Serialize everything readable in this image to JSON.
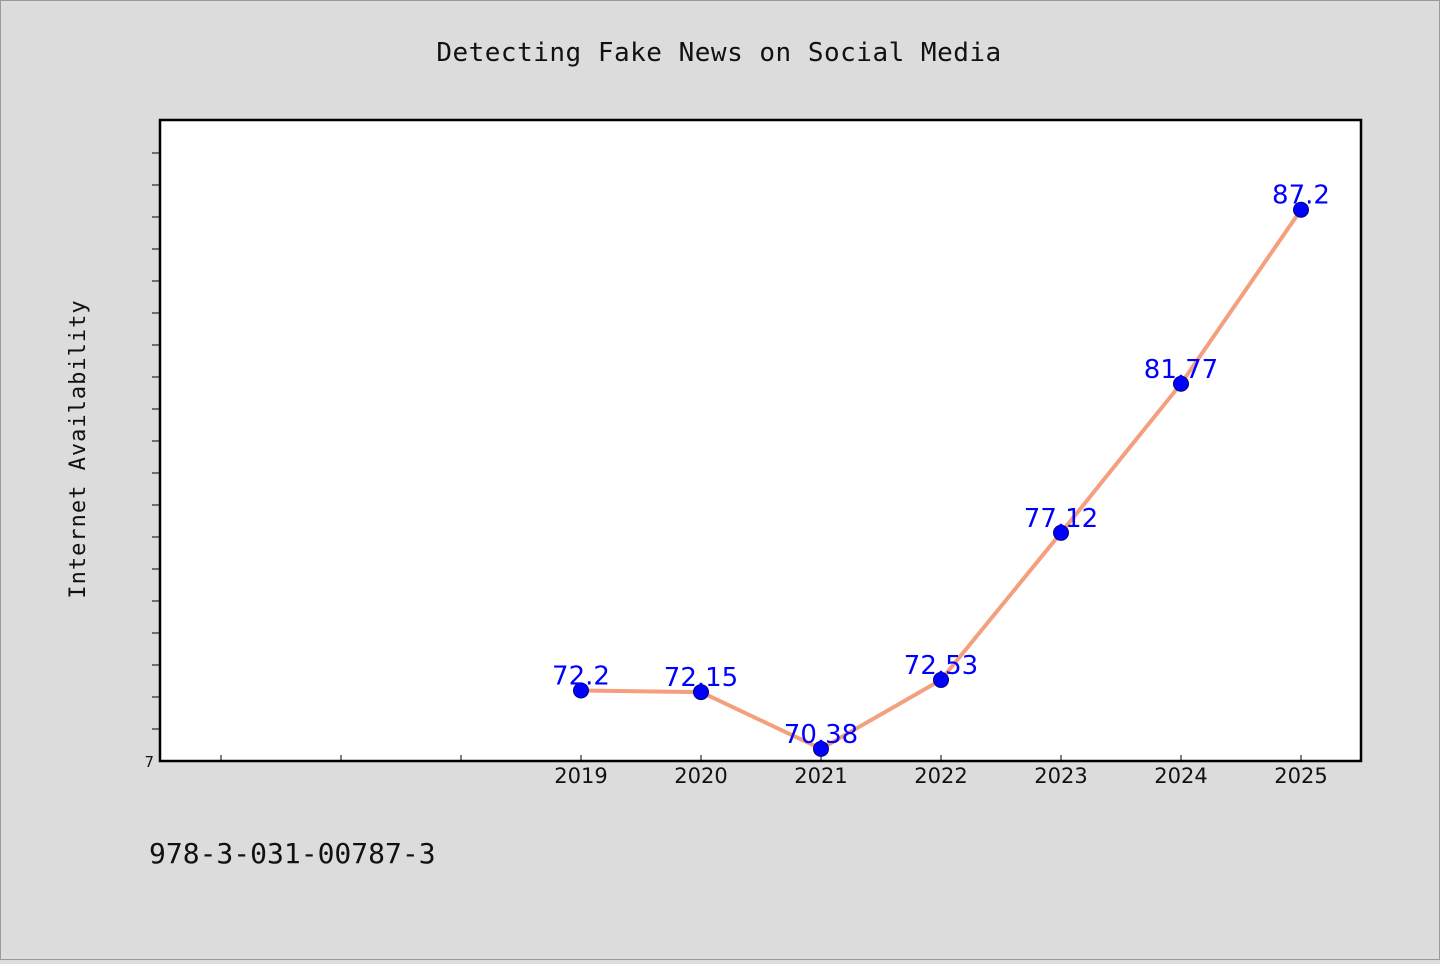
{
  "chart_data": {
    "type": "line",
    "title": "Detecting Fake News on Social Media",
    "xlabel": "",
    "ylabel": "Internet Availability",
    "categories": [
      "2019",
      "2020",
      "2021",
      "2022",
      "2023",
      "2024",
      "2025"
    ],
    "series": [
      {
        "values": [
          72.2,
          72.15,
          70.38,
          72.53,
          77.12,
          81.77,
          87.2
        ]
      }
    ],
    "data_labels": [
      "72.2",
      "72.15",
      "70.38",
      "72.53",
      "77.12",
      "81.77",
      "87.2"
    ],
    "x_slots": 10,
    "ylim": [
      70.0,
      90.0
    ],
    "y_min_label": "7",
    "y_minor_ticks": 20,
    "grid": false,
    "legend": "none",
    "colors": {
      "line": "#f4a07e",
      "marker": "#0000ff",
      "data_label": "#0000ff",
      "plot_background": "#ffffff",
      "figure_background": "#dcdcdc"
    }
  },
  "footer": {
    "isbn": "978-3-031-00787-3"
  }
}
